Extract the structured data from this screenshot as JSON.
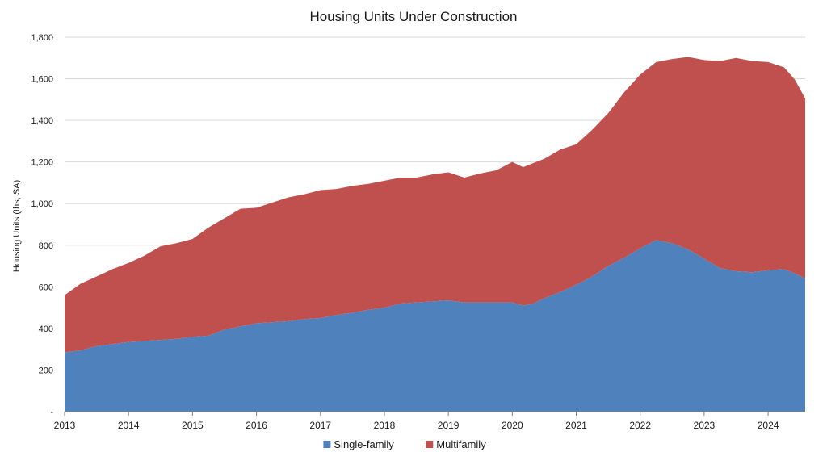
{
  "chart_data": {
    "type": "area",
    "stacked": true,
    "title": "Housing Units Under Construction",
    "ylabel": "Housing Units (ths, SA)",
    "xlabel": "",
    "ylim": [
      0,
      1800
    ],
    "y_ticks": [
      0,
      200,
      400,
      600,
      800,
      1000,
      1200,
      1400,
      1600,
      1800
    ],
    "y_tick_labels": [
      "-",
      "200",
      "400",
      "600",
      "800",
      "1,000",
      "1,200",
      "1,400",
      "1,600",
      "1,800"
    ],
    "xlim": [
      2013.0,
      2024.58
    ],
    "x_ticks": [
      2013,
      2014,
      2015,
      2016,
      2017,
      2018,
      2019,
      2020,
      2021,
      2022,
      2023,
      2024
    ],
    "x_tick_labels": [
      "2013",
      "2014",
      "2015",
      "2016",
      "2017",
      "2018",
      "2019",
      "2020",
      "2021",
      "2022",
      "2023",
      "2024"
    ],
    "grid": "horizontal",
    "legend_position": "bottom-center",
    "x": [
      2013.0,
      2013.25,
      2013.5,
      2013.75,
      2014.0,
      2014.25,
      2014.5,
      2014.75,
      2015.0,
      2015.25,
      2015.5,
      2015.75,
      2016.0,
      2016.25,
      2016.5,
      2016.75,
      2017.0,
      2017.25,
      2017.5,
      2017.75,
      2018.0,
      2018.25,
      2018.5,
      2018.75,
      2019.0,
      2019.25,
      2019.5,
      2019.75,
      2020.0,
      2020.17,
      2020.33,
      2020.5,
      2020.75,
      2021.0,
      2021.25,
      2021.5,
      2021.75,
      2022.0,
      2022.25,
      2022.5,
      2022.75,
      2023.0,
      2023.25,
      2023.5,
      2023.75,
      2024.0,
      2024.25,
      2024.42,
      2024.58
    ],
    "series": [
      {
        "name": "Single-family",
        "color": "#4f81bd",
        "values": [
          285,
          295,
          315,
          325,
          335,
          340,
          345,
          350,
          360,
          365,
          395,
          410,
          425,
          430,
          435,
          445,
          450,
          465,
          475,
          490,
          500,
          520,
          525,
          530,
          535,
          525,
          525,
          525,
          525,
          510,
          520,
          545,
          575,
          610,
          650,
          700,
          740,
          785,
          825,
          810,
          780,
          735,
          690,
          675,
          670,
          680,
          685,
          665,
          640
        ]
      },
      {
        "name": "Multifamily",
        "color": "#c0504d",
        "values": [
          275,
          320,
          335,
          360,
          380,
          410,
          450,
          460,
          470,
          520,
          535,
          565,
          555,
          575,
          595,
          600,
          615,
          605,
          610,
          605,
          610,
          605,
          600,
          610,
          615,
          600,
          620,
          635,
          675,
          665,
          675,
          670,
          685,
          675,
          705,
          735,
          795,
          835,
          855,
          885,
          925,
          955,
          995,
          1025,
          1015,
          1000,
          970,
          930,
          865
        ]
      }
    ]
  }
}
